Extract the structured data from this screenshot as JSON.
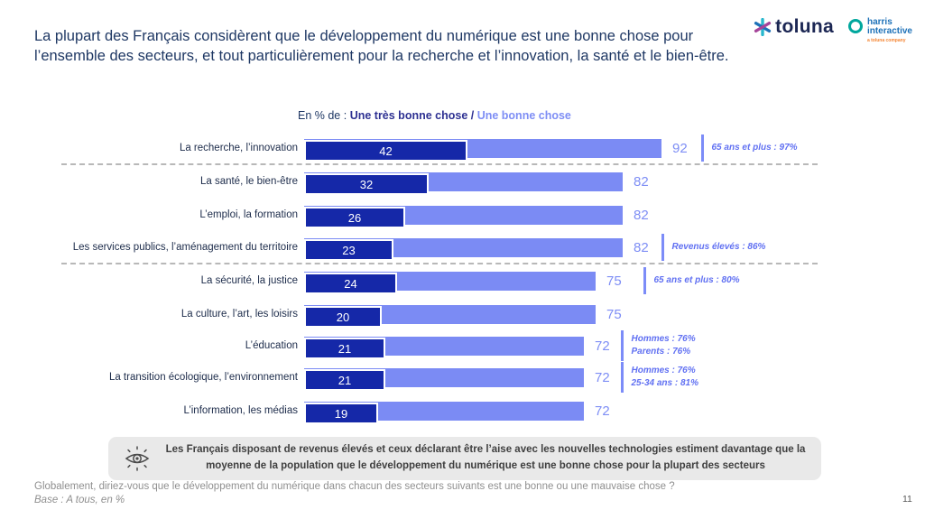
{
  "header": {
    "title": "La plupart des Français considèrent que le développement du numérique est une bonne chose pour l’ensemble des secteurs, et tout particulièrement pour la recherche et l’innovation, la santé et le bien-être.",
    "logos": {
      "toluna": "toluna",
      "harris_line1": "harris",
      "harris_line2": "interactive",
      "harris_sub": "a toluna company"
    }
  },
  "legend": {
    "prefix": "En % de : ",
    "series1": "Une très bonne chose",
    "separator": " / ",
    "series2": "Une bonne chose"
  },
  "chart_data": {
    "type": "bar",
    "orientation": "horizontal",
    "unit": "%",
    "xlim": [
      0,
      100
    ],
    "series": [
      {
        "name": "Une très bonne chose",
        "color": "#1528A8"
      },
      {
        "name": "Une bonne chose (total)",
        "color": "#7B8BF4"
      }
    ],
    "rows": [
      {
        "label": "La recherche, l’innovation",
        "tres_bonne": 42,
        "total": 92,
        "annotations": [
          "65 ans et plus : 97%"
        ]
      },
      {
        "label": "La santé, le bien-être",
        "tres_bonne": 32,
        "total": 82,
        "annotations": []
      },
      {
        "label": "L’emploi, la formation",
        "tres_bonne": 26,
        "total": 82,
        "annotations": []
      },
      {
        "label": "Les services publics, l’aménagement du territoire",
        "tres_bonne": 23,
        "total": 82,
        "annotations": [
          "Revenus élevés : 86%"
        ]
      },
      {
        "label": "La sécurité, la justice",
        "tres_bonne": 24,
        "total": 75,
        "annotations": [
          "65 ans et plus : 80%"
        ]
      },
      {
        "label": "La culture, l’art, les loisirs",
        "tres_bonne": 20,
        "total": 75,
        "annotations": []
      },
      {
        "label": "L’éducation",
        "tres_bonne": 21,
        "total": 72,
        "annotations": [
          "Hommes : 76%",
          "Parents : 76%"
        ]
      },
      {
        "label": "La transition écologique, l’environnement",
        "tres_bonne": 21,
        "total": 72,
        "annotations": [
          "Hommes : 76%",
          "25-34 ans : 81%"
        ]
      },
      {
        "label": "L’information, les médias",
        "tres_bonne": 19,
        "total": 72,
        "annotations": []
      }
    ],
    "separators_after_rows": [
      0,
      3
    ]
  },
  "callout": {
    "text": "Les Français disposant de revenus élevés et ceux déclarant être l’aise avec les nouvelles technologies estiment davantage que la moyenne de la population que le développement du numérique est une bonne chose pour la plupart des secteurs"
  },
  "footer": {
    "question": "Globalement, diriez-vous que le développement du numérique dans chacun des secteurs suivants est une bonne ou une mauvaise chose ?",
    "base": "Base : A tous, en %",
    "page_number": "11"
  },
  "colors": {
    "title": "#1F3864",
    "dark_bar": "#1528A8",
    "light_bar": "#7B8BF4",
    "annotation_text": "#6070F2",
    "legend_series1": "#2E3192",
    "legend_series2": "#7E8EF5",
    "callout_bg": "#E9E9E9",
    "footer_text": "#8F8F8F"
  }
}
